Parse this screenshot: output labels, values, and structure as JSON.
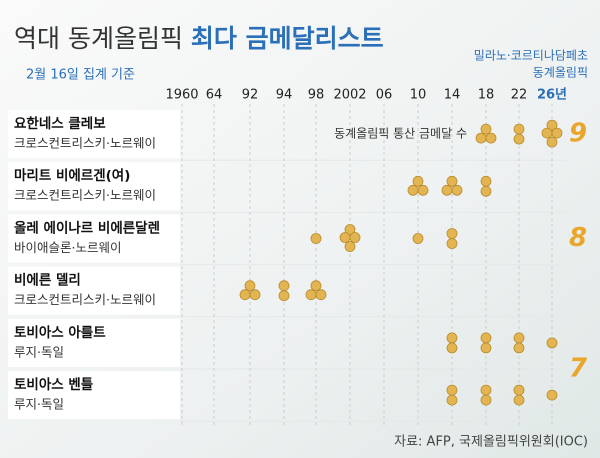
{
  "chart_data": {
    "type": "medal-dots",
    "title": "역대 동계올림픽",
    "title_highlight": "최다 금메달리스트",
    "subtitle": "2월 16일 집계 기준",
    "edition": [
      "밀라노·코르티나담페초",
      "동계올림픽"
    ],
    "annotation": "동계올림픽 통산 금메달 수",
    "source": "자료: AFP, 국제올림픽위원회(IOC)",
    "categories": [
      "1960",
      "64",
      "92",
      "94",
      "98",
      "2002",
      "06",
      "10",
      "14",
      "18",
      "22",
      "26년"
    ],
    "medal_color": "#e2b552",
    "total_color": "#e9a62a",
    "highlight_color": "#2a6fb8",
    "rows": [
      {
        "name": "요한네스 클레보",
        "sport": "크로스컨트리스키·노르웨이",
        "values": [
          null,
          null,
          null,
          null,
          null,
          null,
          null,
          null,
          null,
          3,
          2,
          4
        ],
        "total": 9
      },
      {
        "name": "마리트 비에르겐(여)",
        "sport": "크로스컨트리스키·노르웨이",
        "values": [
          null,
          null,
          null,
          null,
          null,
          null,
          null,
          3,
          3,
          2,
          null,
          null
        ],
        "total": 8
      },
      {
        "name": "올레 에이나르 비에른달렌",
        "sport": "바이애슬론·노르웨이",
        "values": [
          null,
          null,
          null,
          null,
          1,
          4,
          null,
          1,
          2,
          null,
          null,
          null
        ],
        "total": null
      },
      {
        "name": "비에른 델리",
        "sport": "크로스컨트리스키·노르웨이",
        "values": [
          null,
          null,
          3,
          2,
          3,
          null,
          null,
          null,
          null,
          null,
          null,
          null
        ],
        "total": null
      },
      {
        "name": "토비아스 아를트",
        "sport": "루지·독일",
        "values": [
          null,
          null,
          null,
          null,
          null,
          null,
          null,
          null,
          2,
          2,
          2,
          1
        ],
        "total": 7
      },
      {
        "name": "토비아스 벤틀",
        "sport": "루지·독일",
        "values": [
          null,
          null,
          null,
          null,
          null,
          null,
          null,
          null,
          2,
          2,
          2,
          1
        ],
        "total": null
      }
    ]
  }
}
